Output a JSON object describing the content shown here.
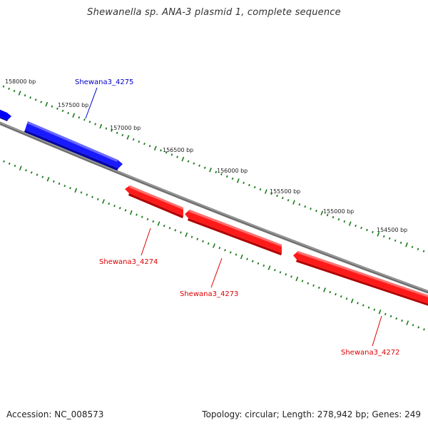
{
  "title": "Shewanella sp. ANA-3 plasmid 1, complete sequence",
  "footer": {
    "accession": "Accession: NC_008573",
    "summary": "Topology: circular; Length: 278,942 bp; Genes: 249"
  },
  "colors": {
    "forward_gene": "#0000ff",
    "reverse_gene": "#ff0000",
    "backbone": "#808080",
    "tick": "#1a7a1a"
  },
  "ticks": [
    {
      "label": "158000 bp"
    },
    {
      "label": "157500 bp"
    },
    {
      "label": "157000 bp"
    },
    {
      "label": "156500 bp"
    },
    {
      "label": "156000 bp"
    },
    {
      "label": "155500 bp"
    },
    {
      "label": "155000 bp"
    },
    {
      "label": "154500 bp"
    }
  ],
  "genes": [
    {
      "name": "",
      "strand": "forward"
    },
    {
      "name": "Shewana3_4275",
      "strand": "forward"
    },
    {
      "name": "Shewana3_4274",
      "strand": "reverse"
    },
    {
      "name": "Shewana3_4273",
      "strand": "reverse"
    },
    {
      "name": "Shewana3_4272",
      "strand": "reverse"
    }
  ]
}
